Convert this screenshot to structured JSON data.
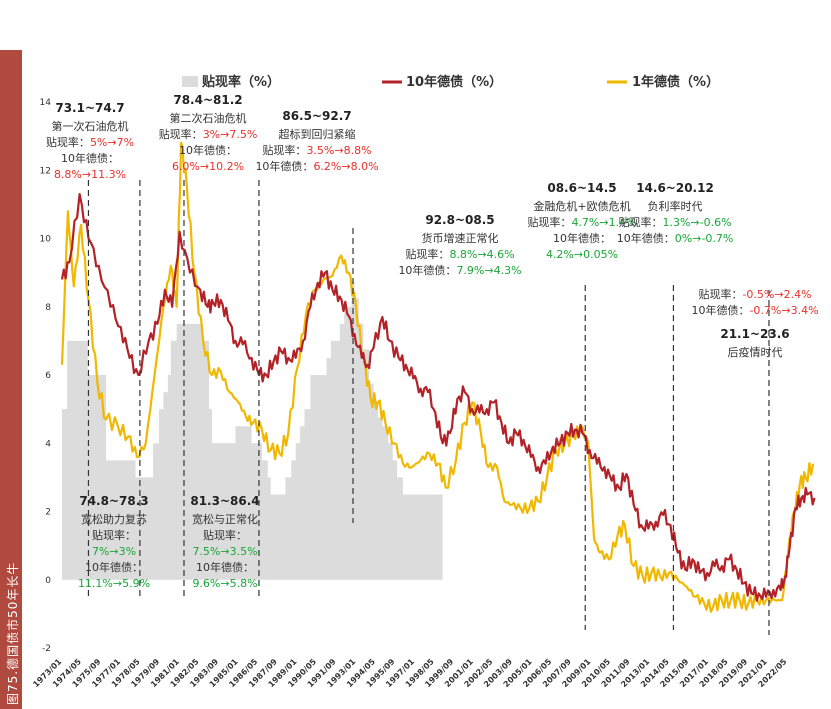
{
  "figure_caption": "图75.德国债市50年长牛",
  "colors": {
    "discount": "#dcdcdc",
    "bund10": "#b22228",
    "bund1": "#f0b800",
    "sidebar": "#b04a3f",
    "up": "#e8302a",
    "down": "#1aa53a"
  },
  "chart_data": {
    "type": "line",
    "title": "",
    "xlabel": "",
    "ylabel": "",
    "ylim": [
      -2,
      14
    ],
    "ytick_labels": [
      "-2",
      "0",
      "2",
      "4",
      "6",
      "8",
      "10",
      "12",
      "14"
    ],
    "xlim": [
      1973.0,
      2024.3
    ],
    "x_tick_labels": [
      "1973/01",
      "1974/05",
      "1975/09",
      "1977/01",
      "1978/05",
      "1979/09",
      "1981/01",
      "1982/05",
      "1983/09",
      "1985/01",
      "1986/05",
      "1987/09",
      "1989/01",
      "1990/05",
      "1991/09",
      "1993/01",
      "1994/05",
      "1995/09",
      "1997/01",
      "1998/05",
      "1999/09",
      "2001/01",
      "2002/05",
      "2003/09",
      "2005/01",
      "2006/05",
      "2007/09",
      "2009/01",
      "2010/05",
      "2011/09",
      "2013/01",
      "2014/05",
      "2015/09",
      "2017/01",
      "2018/05",
      "2019/09",
      "2021/01",
      "2022/05"
    ],
    "series": [
      {
        "name": "贴现率（%）",
        "type": "area",
        "color": "#dcdcdc",
        "x": [
          1973.0,
          1973.25,
          1973.35,
          1974.6,
          1974.75,
          1976.0,
          1976.5,
          1977.8,
          1978.0,
          1979.0,
          1979.2,
          1979.6,
          1979.9,
          1980.2,
          1980.4,
          1980.8,
          1981.0,
          1982.3,
          1982.5,
          1983.0,
          1983.2,
          1984.6,
          1984.8,
          1985.6,
          1985.9,
          1986.4,
          1986.6,
          1987.0,
          1987.2,
          1988.0,
          1988.2,
          1988.6,
          1988.9,
          1989.2,
          1989.5,
          1989.9,
          1990.4,
          1991.0,
          1991.3,
          1991.9,
          1992.2,
          1992.7,
          1992.9,
          1993.2,
          1993.5,
          1993.9,
          1994.2,
          1994.5,
          1994.8,
          1995.2,
          1995.5,
          1995.8,
          1996.2,
          1996.5,
          1998.9
        ],
        "y": [
          5.0,
          5.0,
          7.0,
          7.0,
          6.0,
          3.5,
          3.5,
          3.5,
          3.0,
          3.0,
          4.0,
          5.0,
          5.5,
          6.0,
          7.0,
          7.5,
          7.5,
          7.5,
          7.0,
          5.0,
          4.0,
          4.0,
          4.5,
          4.5,
          4.0,
          4.0,
          3.5,
          3.0,
          2.5,
          2.5,
          3.0,
          3.5,
          4.0,
          4.5,
          5.0,
          6.0,
          6.0,
          6.5,
          7.0,
          7.5,
          8.0,
          8.75,
          8.25,
          7.5,
          6.75,
          5.75,
          5.25,
          4.75,
          4.5,
          4.0,
          3.5,
          3.0,
          2.5,
          2.5,
          2.5
        ]
      },
      {
        "name": "10年德债（%）",
        "type": "line",
        "color": "#b22228",
        "x": [
          1973.0,
          1973.5,
          1974.2,
          1974.8,
          1975.5,
          1976.3,
          1977.0,
          1977.6,
          1978.2,
          1978.9,
          1979.5,
          1980.0,
          1980.5,
          1981.0,
          1981.7,
          1982.4,
          1982.9,
          1983.3,
          1983.8,
          1984.3,
          1984.8,
          1985.3,
          1985.9,
          1986.4,
          1986.9,
          1987.4,
          1987.9,
          1988.4,
          1988.9,
          1989.4,
          1989.9,
          1990.4,
          1990.9,
          1991.4,
          1991.9,
          1992.4,
          1992.9,
          1993.4,
          1993.8,
          1994.2,
          1994.8,
          1995.3,
          1995.9,
          1996.4,
          1996.9,
          1997.4,
          1997.9,
          1998.4,
          1998.9,
          1999.4,
          1999.9,
          2000.4,
          2000.9,
          2001.4,
          2001.9,
          2002.4,
          2002.9,
          2003.4,
          2003.9,
          2004.4,
          2004.9,
          2005.4,
          2005.9,
          2006.4,
          2006.9,
          2007.4,
          2007.9,
          2008.4,
          2008.9,
          2009.4,
          2009.9,
          2010.4,
          2010.9,
          2011.4,
          2011.9,
          2012.4,
          2012.9,
          2013.4,
          2013.9,
          2014.4,
          2014.9,
          2015.4,
          2015.9,
          2016.4,
          2016.9,
          2017.4,
          2017.9,
          2018.4,
          2018.9,
          2019.4,
          2019.9,
          2020.4,
          2020.9,
          2021.4,
          2021.9,
          2022.2,
          2022.5,
          2022.9,
          2023.3,
          2023.7,
          2024.2
        ],
        "y": [
          8.8,
          9.3,
          11.3,
          10.0,
          9.2,
          8.0,
          7.4,
          6.5,
          6.0,
          7.0,
          7.5,
          8.5,
          8.0,
          10.2,
          9.0,
          8.5,
          8.0,
          8.1,
          8.2,
          7.6,
          7.0,
          6.9,
          6.5,
          6.0,
          6.0,
          6.4,
          6.7,
          6.5,
          6.5,
          7.0,
          8.0,
          8.7,
          9.0,
          8.5,
          8.3,
          7.8,
          7.2,
          6.5,
          6.3,
          6.8,
          7.7,
          7.0,
          6.5,
          6.3,
          5.9,
          5.6,
          5.5,
          4.9,
          4.0,
          4.3,
          5.3,
          5.5,
          5.0,
          4.9,
          5.0,
          5.2,
          4.6,
          4.0,
          4.3,
          4.1,
          3.6,
          3.3,
          3.4,
          3.9,
          4.0,
          4.3,
          4.4,
          4.3,
          3.8,
          3.4,
          3.3,
          2.9,
          2.7,
          3.1,
          2.2,
          1.6,
          1.5,
          1.7,
          1.9,
          1.6,
          0.8,
          0.3,
          0.6,
          0.2,
          0.2,
          0.4,
          0.4,
          0.6,
          0.3,
          -0.1,
          -0.4,
          -0.4,
          -0.5,
          -0.3,
          -0.3,
          0.1,
          0.9,
          2.1,
          2.4,
          2.5,
          2.4
        ]
      },
      {
        "name": "1年德债（%）",
        "type": "line",
        "color": "#f0b800",
        "x": [
          1973.0,
          1973.4,
          1973.8,
          1974.3,
          1974.8,
          1975.4,
          1976.0,
          1976.8,
          1977.5,
          1978.1,
          1978.7,
          1979.3,
          1979.9,
          1980.4,
          1980.8,
          1981.1,
          1981.5,
          1982.0,
          1982.6,
          1983.2,
          1983.8,
          1984.4,
          1985.0,
          1985.5,
          1986.0,
          1986.6,
          1987.2,
          1987.8,
          1988.4,
          1989.0,
          1989.6,
          1990.2,
          1990.8,
          1991.4,
          1992.0,
          1992.5,
          1993.0,
          1993.5,
          1994.0,
          1994.5,
          1995.0,
          1995.6,
          1996.2,
          1996.8,
          1997.4,
          1998.0,
          1998.6,
          1999.1,
          1999.8,
          2000.4,
          2000.9,
          2001.5,
          2002.0,
          2002.6,
          2003.1,
          2003.6,
          2004.2,
          2004.8,
          2005.4,
          2006.0,
          2006.6,
          2007.2,
          2007.8,
          2008.3,
          2008.8,
          2009.2,
          2009.6,
          2010.2,
          2010.8,
          2011.3,
          2011.9,
          2012.5,
          2013.1,
          2013.7,
          2014.3,
          2014.9,
          2015.5,
          2016.1,
          2016.7,
          2017.3,
          2017.9,
          2018.5,
          2019.1,
          2019.7,
          2020.3,
          2020.9,
          2021.5,
          2022.0,
          2022.4,
          2022.8,
          2023.2,
          2023.6,
          2024.1
        ],
        "y": [
          6.3,
          10.8,
          8.6,
          10.4,
          8.2,
          5.8,
          4.7,
          4.5,
          4.2,
          3.6,
          4.0,
          6.0,
          8.0,
          9.2,
          8.0,
          12.8,
          11.5,
          9.0,
          7.0,
          6.0,
          6.1,
          5.5,
          5.2,
          4.8,
          4.6,
          4.4,
          3.8,
          3.7,
          4.3,
          6.2,
          7.8,
          8.5,
          8.8,
          8.9,
          9.5,
          9.0,
          8.0,
          6.5,
          5.3,
          5.2,
          4.6,
          4.0,
          3.4,
          3.3,
          3.5,
          3.7,
          3.4,
          2.7,
          3.5,
          4.6,
          5.2,
          4.3,
          3.3,
          3.3,
          2.3,
          2.2,
          2.1,
          2.1,
          2.3,
          3.0,
          3.8,
          4.0,
          4.2,
          4.5,
          4.0,
          1.2,
          0.8,
          0.6,
          1.3,
          1.6,
          0.4,
          0.1,
          0.2,
          0.1,
          0.2,
          0.0,
          -0.2,
          -0.5,
          -0.7,
          -0.8,
          -0.6,
          -0.6,
          -0.6,
          -0.7,
          -0.6,
          -0.6,
          -0.6,
          -0.6,
          0.8,
          2.0,
          2.8,
          3.0,
          3.4
        ]
      }
    ],
    "vlines": [
      1974.8,
      1978.3,
      1981.3,
      1986.4,
      1992.8,
      2008.6,
      2014.6,
      2021.1
    ],
    "legend": {
      "position": "top",
      "items": [
        "贴现率（%）",
        "10年德债（%）",
        "1年德债（%）"
      ]
    }
  },
  "annotations": [
    {
      "id": "a1",
      "title": "73.1~74.7",
      "lines": [
        {
          "t": "第一次石油危机"
        },
        {
          "t": "贴现率：",
          "v": "5%→7%",
          "c": "up"
        },
        {
          "t": "10年德债："
        },
        {
          "v": "8.8%→11.3%",
          "c": "up"
        }
      ]
    },
    {
      "id": "a2",
      "title": "78.4~81.2",
      "lines": [
        {
          "t": "第二次石油危机"
        },
        {
          "t": "贴现率：",
          "v": "3%→7.5%",
          "c": "up"
        },
        {
          "t": "10年德债："
        },
        {
          "v": "6.0%→10.2%",
          "c": "up"
        }
      ]
    },
    {
      "id": "a3",
      "title": "86.5~92.7",
      "lines": [
        {
          "t": "超标到回归紧缩"
        },
        {
          "t": "贴现率：",
          "v": "3.5%→8.8%",
          "c": "up"
        },
        {
          "t": "10年德债：",
          "v": "6.2%→8.0%",
          "c": "up"
        }
      ]
    },
    {
      "id": "a4",
      "title": "92.8~08.5",
      "lines": [
        {
          "t": "货币增速正常化"
        },
        {
          "t": "贴现率：",
          "v": "8.8%→4.6%",
          "c": "down"
        },
        {
          "t": "10年德债：",
          "v": "7.9%→4.3%",
          "c": "down"
        }
      ]
    },
    {
      "id": "a5",
      "title": "08.6~14.5",
      "lines": [
        {
          "t": "金融危机+欧债危机"
        },
        {
          "t": "贴现率：",
          "v": "4.7%→1.4%",
          "c": "down"
        },
        {
          "t": "10年德债："
        },
        {
          "v": "4.2%→0.05%",
          "c": "down"
        }
      ]
    },
    {
      "id": "a6",
      "title": "14.6~20.12",
      "lines": [
        {
          "t": "负利率时代"
        },
        {
          "t": "贴现率：",
          "v": "1.3%→-0.6%",
          "c": "down"
        },
        {
          "t": "10年德债：",
          "v": "0%→-0.7%",
          "c": "down"
        }
      ]
    },
    {
      "id": "a7",
      "title": "21.1~23.6",
      "lines": [
        {
          "t": "贴现率：",
          "v": "-0.5%→2.4%",
          "c": "up"
        },
        {
          "t": "10年德债：",
          "v": "-0.7%→3.4%",
          "c": "up"
        },
        {
          "t": "后疫情时代"
        }
      ]
    },
    {
      "id": "a8",
      "title": "74.8~78.3",
      "lines": [
        {
          "t": "宽松助力复苏"
        },
        {
          "t": "贴现率："
        },
        {
          "v": "7%→3%",
          "c": "down"
        },
        {
          "t": "10年德债："
        },
        {
          "v": "11.1%→5.9%",
          "c": "down"
        }
      ]
    },
    {
      "id": "a9",
      "title": "81.3~86.4",
      "lines": [
        {
          "t": "宽松与正常化"
        },
        {
          "t": "贴现率："
        },
        {
          "v": "7.5%→3.5%",
          "c": "down"
        },
        {
          "t": "10年德债："
        },
        {
          "v": "9.6%→5.8%",
          "c": "down"
        }
      ]
    }
  ]
}
